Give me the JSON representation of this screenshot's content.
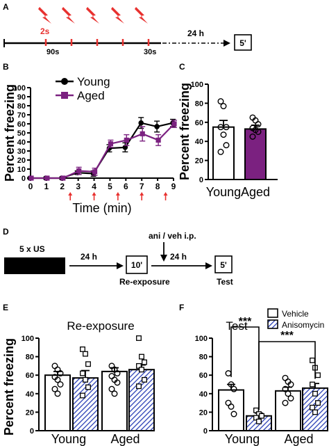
{
  "panel_A": {
    "letter": "A",
    "shock_label": "2s",
    "interval_first": "90s",
    "interval_last": "30s",
    "delay": "24 h",
    "test_box": "5'"
  },
  "panel_D": {
    "letter": "D",
    "us_label": "5 x US",
    "delay1": "24 h",
    "reexposure_box": "10'",
    "injection": "ani / veh i.p.",
    "delay2": "24 h",
    "test_box": "5'",
    "reexposure_label": "Re-exposure",
    "test_label": "Test"
  },
  "colors": {
    "young": "#000000",
    "aged": "#7b2180",
    "anisomycin_hatch": "#2a3fb5",
    "shock_red": "#e8312f"
  },
  "chart_data": [
    {
      "panel": "B",
      "type": "line",
      "xlabel": "Time (min)",
      "ylabel": "Percent freezing",
      "xlim": [
        0,
        9
      ],
      "ylim": [
        0,
        100
      ],
      "x": [
        0,
        1,
        2,
        3,
        4,
        5,
        6,
        7,
        8,
        9
      ],
      "xticks": [
        "0",
        "1",
        "2",
        "3",
        "4",
        "5",
        "6",
        "7",
        "8",
        "9"
      ],
      "yticks": [
        "0",
        "10",
        "20",
        "30",
        "40",
        "50",
        "60",
        "70",
        "80",
        "90",
        "100"
      ],
      "legend": "top-left",
      "shock_times": [
        2.5,
        4,
        5.5,
        7,
        8.5
      ],
      "series": [
        {
          "name": "Young",
          "values": [
            0,
            0,
            0,
            6,
            5,
            33,
            34,
            61,
            57,
            61
          ],
          "errors": [
            0,
            0,
            0,
            2,
            3,
            4,
            5,
            6,
            6,
            4
          ]
        },
        {
          "name": "Aged",
          "values": [
            0,
            0,
            0,
            8,
            7,
            38,
            42,
            49,
            42,
            60
          ],
          "errors": [
            0,
            0,
            0,
            4,
            4,
            4,
            6,
            8,
            6,
            4
          ]
        }
      ]
    },
    {
      "panel": "C",
      "type": "bar",
      "ylabel": "Percent freezing",
      "ylim": [
        0,
        100
      ],
      "yticks": [
        "0",
        "20",
        "40",
        "60",
        "80",
        "100"
      ],
      "categories": [
        "Young",
        "Aged"
      ],
      "values": [
        55,
        53
      ],
      "errors": [
        7,
        4
      ],
      "points": [
        [
          82,
          77,
          55,
          55,
          47,
          36,
          29
        ],
        [
          65,
          62,
          58,
          54,
          52,
          50,
          45
        ]
      ]
    },
    {
      "panel": "E",
      "type": "bar",
      "title": "Re-exposure",
      "ylabel": "Percent freezing",
      "ylim": [
        0,
        100
      ],
      "yticks": [
        "0",
        "20",
        "40",
        "60",
        "80",
        "100"
      ],
      "categories": [
        "Young",
        "Aged"
      ],
      "series": [
        {
          "name": "Vehicle",
          "values": [
            60,
            64
          ],
          "errors": [
            4,
            4
          ]
        },
        {
          "name": "Anisomycin",
          "values": [
            57,
            66
          ],
          "errors": [
            8,
            5
          ]
        }
      ],
      "points": [
        [
          70,
          66,
          62,
          58,
          55,
          50,
          45,
          40
        ],
        [
          88,
          83,
          72,
          62,
          55,
          47,
          38
        ],
        [
          70,
          66,
          62,
          59,
          55,
          52,
          45,
          40
        ],
        [
          100,
          80,
          74,
          70,
          66,
          55,
          48
        ]
      ]
    },
    {
      "panel": "F",
      "type": "bar",
      "title": "Test",
      "ylabel": "",
      "ylim": [
        0,
        100
      ],
      "yticks": [
        "0",
        "20",
        "40",
        "60",
        "80",
        "100"
      ],
      "categories": [
        "Young",
        "Aged"
      ],
      "legend": "top-right",
      "series": [
        {
          "name": "Vehicle",
          "values": [
            44,
            43
          ],
          "errors": [
            6,
            4
          ]
        },
        {
          "name": "Anisomycin",
          "values": [
            16,
            46
          ],
          "errors": [
            3,
            5
          ]
        }
      ],
      "points": [
        [
          62,
          50,
          45,
          30,
          26,
          18
        ],
        [
          22,
          18,
          16,
          14,
          10
        ],
        [
          57,
          53,
          50,
          45,
          40,
          35,
          30
        ],
        [
          76,
          68,
          60,
          50,
          40,
          30,
          25,
          20
        ]
      ],
      "significance": [
        "***",
        "***"
      ]
    }
  ]
}
